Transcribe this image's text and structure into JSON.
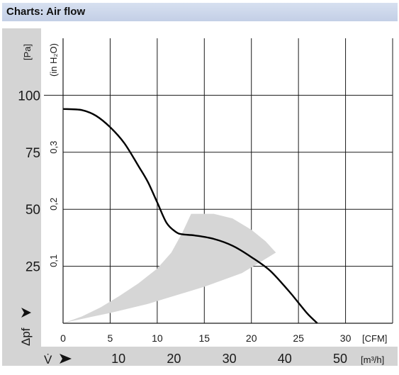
{
  "header": {
    "title": "Charts: Air flow"
  },
  "chart_data": {
    "type": "line",
    "title": "Charts: Air flow",
    "y_unit_pa": "[Pa]",
    "y_unit_inh2o": "(in H₂O)",
    "ylabel": "Δpf",
    "x_unit_cfm": "[CFM]",
    "x_unit_m3h": "[m³/h]",
    "xlabel": "V̇",
    "xlim_cfm": [
      0,
      35
    ],
    "ylim_pa": [
      0,
      125
    ],
    "grid": true,
    "pa_ticks": [
      "25",
      "50",
      "75",
      "100"
    ],
    "pa_tick_values": [
      25,
      50,
      75,
      100
    ],
    "inh2o_ticks": [
      "0,1",
      "0,2",
      "0,3"
    ],
    "inh2o_tick_values": [
      0.1,
      0.2,
      0.3
    ],
    "cfm_ticks": [
      "0",
      "5",
      "10",
      "15",
      "20",
      "25",
      "30"
    ],
    "cfm_tick_values": [
      0,
      5,
      10,
      15,
      20,
      25,
      30
    ],
    "m3h_ticks": [
      "10",
      "20",
      "30",
      "40",
      "50"
    ],
    "m3h_tick_values": [
      10,
      20,
      30,
      40,
      50
    ],
    "series": [
      {
        "x": [
          0,
          2,
          3.5,
          5,
          6.5,
          8,
          9,
          10,
          11,
          12,
          12.7,
          14,
          16,
          18,
          20,
          22,
          24,
          25,
          26,
          27
        ],
        "y": [
          94,
          93.5,
          91,
          86,
          79,
          69,
          62,
          53,
          44,
          40,
          39,
          38.5,
          37,
          34,
          29,
          23,
          14,
          9,
          4,
          0
        ],
        "color": "#000000"
      }
    ],
    "operating_area": {
      "color": "#d6d6d6",
      "upper_x": [
        0,
        2,
        4,
        6,
        8,
        10,
        11.5,
        12.7,
        13.6,
        16,
        18,
        20,
        21.5,
        22.6
      ],
      "upper_y": [
        0,
        3,
        7,
        12,
        17.5,
        24,
        31,
        40,
        48,
        48,
        46,
        41,
        36,
        31
      ],
      "lower_x": [
        22.6,
        21,
        19,
        17,
        15,
        13,
        11,
        9,
        7,
        5,
        3,
        1,
        0
      ],
      "lower_y": [
        31,
        27,
        22,
        19,
        16,
        13.5,
        11,
        8.5,
        6.5,
        4.5,
        2.8,
        1,
        0
      ]
    }
  }
}
